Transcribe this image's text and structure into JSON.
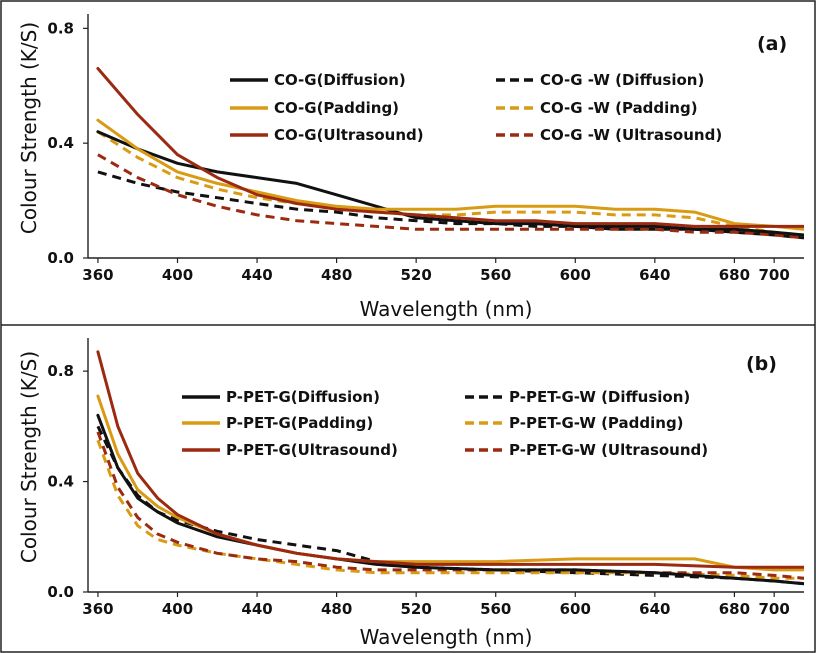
{
  "chart_data": [
    {
      "type": "line",
      "panel_label": "(a)",
      "xlabel": "Wavelength (nm)",
      "ylabel": "Colour Strength (K/S)",
      "xlim": [
        355,
        715
      ],
      "ylim": [
        0,
        0.85
      ],
      "xticks": [
        360,
        400,
        440,
        480,
        520,
        560,
        600,
        640,
        680,
        700
      ],
      "yticks": [
        0.0,
        0.4,
        0.8
      ],
      "ytick_labels": [
        "0.0",
        "0.4",
        "0.8"
      ],
      "grid": false,
      "legend_position": "top-center",
      "series": [
        {
          "name": "CO-G(Diffusion)",
          "color": "#111111",
          "dashed": false,
          "x": [
            360,
            380,
            400,
            420,
            440,
            460,
            480,
            500,
            520,
            540,
            560,
            580,
            600,
            620,
            640,
            660,
            680,
            700,
            715
          ],
          "y": [
            0.44,
            0.38,
            0.33,
            0.3,
            0.28,
            0.26,
            0.22,
            0.18,
            0.14,
            0.13,
            0.12,
            0.12,
            0.11,
            0.11,
            0.11,
            0.1,
            0.1,
            0.09,
            0.08
          ]
        },
        {
          "name": "CO-G(Padding)",
          "color": "#D99A14",
          "dashed": false,
          "x": [
            360,
            380,
            400,
            420,
            440,
            460,
            480,
            500,
            520,
            540,
            560,
            580,
            600,
            620,
            640,
            660,
            680,
            700,
            715
          ],
          "y": [
            0.48,
            0.38,
            0.3,
            0.26,
            0.23,
            0.2,
            0.18,
            0.17,
            0.17,
            0.17,
            0.18,
            0.18,
            0.18,
            0.17,
            0.17,
            0.16,
            0.12,
            0.11,
            0.1
          ]
        },
        {
          "name": "CO-G(Ultrasound)",
          "color": "#9B2A10",
          "dashed": false,
          "x": [
            360,
            380,
            400,
            420,
            440,
            460,
            480,
            500,
            520,
            540,
            560,
            580,
            600,
            620,
            640,
            660,
            680,
            700,
            715
          ],
          "y": [
            0.66,
            0.5,
            0.36,
            0.28,
            0.22,
            0.19,
            0.17,
            0.16,
            0.15,
            0.14,
            0.13,
            0.13,
            0.12,
            0.12,
            0.12,
            0.11,
            0.11,
            0.11,
            0.11
          ]
        },
        {
          "name": "CO-G -W (Diffusion)",
          "color": "#111111",
          "dashed": true,
          "x": [
            360,
            380,
            400,
            420,
            440,
            460,
            480,
            500,
            520,
            540,
            560,
            580,
            600,
            620,
            640,
            660,
            680,
            700,
            715
          ],
          "y": [
            0.3,
            0.26,
            0.23,
            0.21,
            0.19,
            0.17,
            0.16,
            0.14,
            0.13,
            0.12,
            0.12,
            0.11,
            0.11,
            0.1,
            0.1,
            0.1,
            0.09,
            0.08,
            0.07
          ]
        },
        {
          "name": "CO-G -W (Padding)",
          "color": "#D99A14",
          "dashed": true,
          "x": [
            360,
            380,
            400,
            420,
            440,
            460,
            480,
            500,
            520,
            540,
            560,
            580,
            600,
            620,
            640,
            660,
            680,
            700,
            715
          ],
          "y": [
            0.44,
            0.35,
            0.28,
            0.24,
            0.21,
            0.19,
            0.17,
            0.16,
            0.15,
            0.15,
            0.16,
            0.16,
            0.16,
            0.15,
            0.15,
            0.14,
            0.11,
            0.09,
            0.08
          ]
        },
        {
          "name": "CO-G -W (Ultrasound)",
          "color": "#9B2A10",
          "dashed": true,
          "x": [
            360,
            380,
            400,
            420,
            440,
            460,
            480,
            500,
            520,
            540,
            560,
            580,
            600,
            620,
            640,
            660,
            680,
            700,
            715
          ],
          "y": [
            0.36,
            0.28,
            0.22,
            0.18,
            0.15,
            0.13,
            0.12,
            0.11,
            0.1,
            0.1,
            0.1,
            0.1,
            0.1,
            0.1,
            0.1,
            0.09,
            0.09,
            0.08,
            0.07
          ]
        }
      ]
    },
    {
      "type": "line",
      "panel_label": "(b)",
      "xlabel": "Wavelength (nm)",
      "ylabel": "Colour Strength (K/S)",
      "xlim": [
        355,
        715
      ],
      "ylim": [
        0,
        0.92
      ],
      "xticks": [
        360,
        400,
        440,
        480,
        520,
        560,
        600,
        640,
        680,
        700
      ],
      "yticks": [
        0.0,
        0.4,
        0.8
      ],
      "ytick_labels": [
        "0.0",
        "0.4",
        "0.8"
      ],
      "grid": false,
      "legend_position": "top-center",
      "series": [
        {
          "name": "P-PET-G(Diffusion)",
          "color": "#111111",
          "dashed": false,
          "x": [
            360,
            370,
            380,
            390,
            400,
            420,
            440,
            460,
            480,
            500,
            520,
            560,
            600,
            640,
            680,
            700,
            715
          ],
          "y": [
            0.64,
            0.45,
            0.34,
            0.29,
            0.25,
            0.2,
            0.17,
            0.14,
            0.12,
            0.1,
            0.09,
            0.08,
            0.08,
            0.07,
            0.05,
            0.04,
            0.03
          ]
        },
        {
          "name": "P-PET-G(Padding)",
          "color": "#D99A14",
          "dashed": false,
          "x": [
            360,
            370,
            380,
            390,
            400,
            420,
            440,
            460,
            480,
            500,
            520,
            560,
            600,
            640,
            660,
            680,
            700,
            715
          ],
          "y": [
            0.71,
            0.5,
            0.37,
            0.31,
            0.27,
            0.21,
            0.17,
            0.14,
            0.12,
            0.11,
            0.11,
            0.11,
            0.12,
            0.12,
            0.12,
            0.09,
            0.08,
            0.08
          ]
        },
        {
          "name": "P-PET-G(Ultrasound)",
          "color": "#9B2A10",
          "dashed": false,
          "x": [
            360,
            370,
            380,
            390,
            400,
            420,
            440,
            460,
            480,
            500,
            520,
            560,
            600,
            640,
            680,
            700,
            715
          ],
          "y": [
            0.87,
            0.6,
            0.43,
            0.34,
            0.28,
            0.21,
            0.17,
            0.14,
            0.12,
            0.11,
            0.1,
            0.1,
            0.1,
            0.1,
            0.09,
            0.09,
            0.09
          ]
        },
        {
          "name": "P-PET-G-W (Diffusion)",
          "color": "#111111",
          "dashed": true,
          "x": [
            360,
            370,
            380,
            390,
            400,
            420,
            440,
            460,
            480,
            500,
            520,
            560,
            600,
            640,
            680,
            700,
            715
          ],
          "y": [
            0.6,
            0.45,
            0.35,
            0.29,
            0.26,
            0.22,
            0.19,
            0.17,
            0.15,
            0.11,
            0.09,
            0.08,
            0.07,
            0.06,
            0.05,
            0.04,
            0.03
          ]
        },
        {
          "name": "P-PET-G-W (Padding)",
          "color": "#D99A14",
          "dashed": true,
          "x": [
            360,
            370,
            380,
            390,
            400,
            420,
            440,
            460,
            480,
            500,
            520,
            560,
            600,
            640,
            680,
            700,
            715
          ],
          "y": [
            0.55,
            0.35,
            0.24,
            0.19,
            0.17,
            0.14,
            0.12,
            0.1,
            0.08,
            0.07,
            0.07,
            0.07,
            0.07,
            0.07,
            0.06,
            0.05,
            0.05
          ]
        },
        {
          "name": "P-PET-G-W (Ultrasound)",
          "color": "#9B2A10",
          "dashed": true,
          "x": [
            360,
            370,
            380,
            390,
            400,
            420,
            440,
            460,
            480,
            500,
            520,
            560,
            600,
            640,
            680,
            700,
            715
          ],
          "y": [
            0.58,
            0.38,
            0.27,
            0.21,
            0.18,
            0.14,
            0.12,
            0.11,
            0.09,
            0.08,
            0.08,
            0.08,
            0.08,
            0.07,
            0.07,
            0.06,
            0.05
          ]
        }
      ]
    }
  ]
}
